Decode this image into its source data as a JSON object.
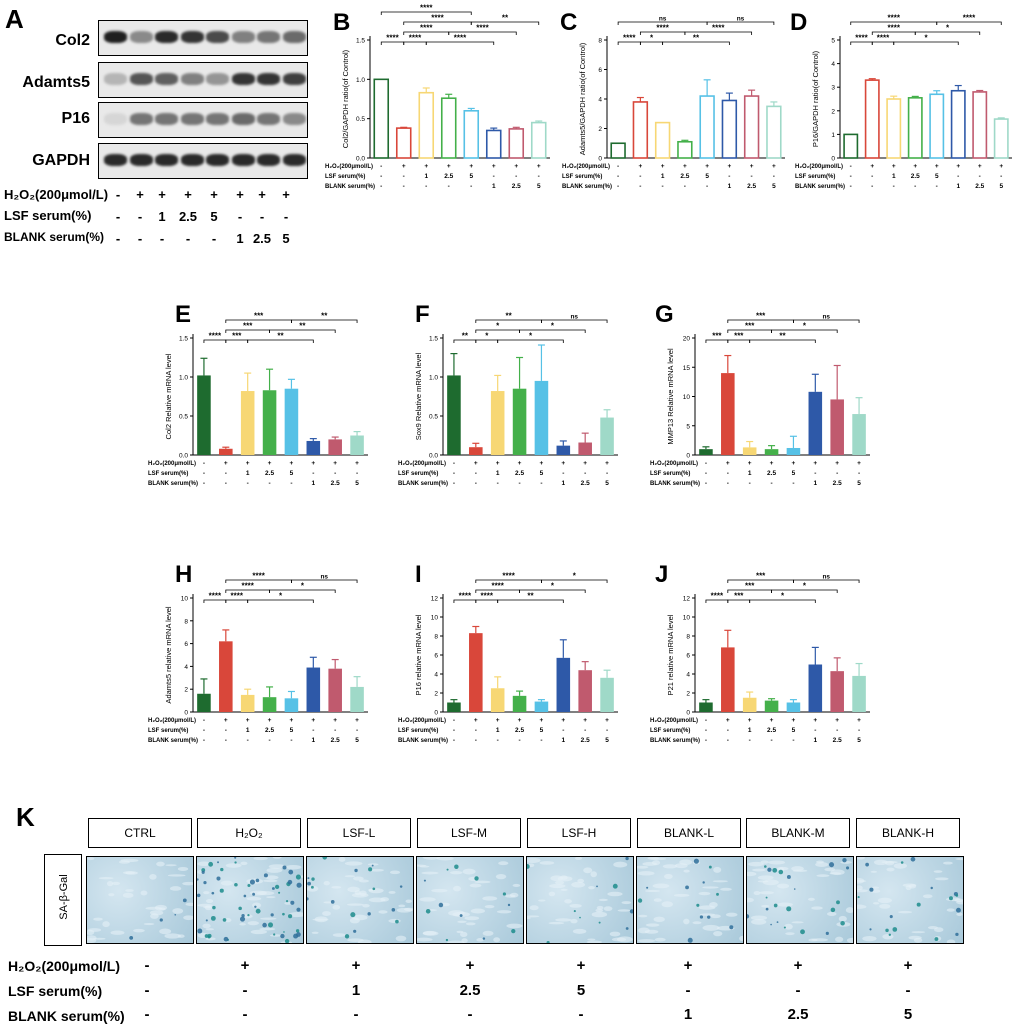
{
  "panelA": {
    "letter": "A",
    "blots": [
      "Col2",
      "Adamts5",
      "P16",
      "GAPDH"
    ],
    "band_intensity": [
      [
        0.95,
        0.45,
        0.9,
        0.85,
        0.75,
        0.5,
        0.55,
        0.6
      ],
      [
        0.25,
        0.7,
        0.65,
        0.5,
        0.4,
        0.85,
        0.85,
        0.8
      ],
      [
        0.1,
        0.55,
        0.55,
        0.55,
        0.55,
        0.6,
        0.55,
        0.45
      ],
      [
        0.9,
        0.9,
        0.9,
        0.9,
        0.9,
        0.9,
        0.9,
        0.9
      ]
    ],
    "rows": [
      {
        "label": "H₂O₂(200μmol/L)",
        "symbols": [
          "-",
          "+",
          "+",
          "+",
          "+",
          "+",
          "+",
          "+"
        ]
      },
      {
        "label": "LSF serum(%)",
        "symbols": [
          "-",
          "-",
          "1",
          "2.5",
          "5",
          "-",
          "-",
          "-"
        ]
      },
      {
        "label": "BLANK serum(%)",
        "symbols": [
          "-",
          "-",
          "-",
          "-",
          "-",
          "1",
          "2.5",
          "5"
        ]
      }
    ]
  },
  "conditions": {
    "h2o2": "H₂O₂(200μmol/L)",
    "lsf": "LSF serum(%)",
    "blank": "BLANK serum(%)",
    "h2o2_symbols": [
      "-",
      "+",
      "+",
      "+",
      "+",
      "+",
      "+",
      "+"
    ],
    "lsf_symbols": [
      "-",
      "-",
      "1",
      "2.5",
      "5",
      "-",
      "-",
      "-"
    ],
    "blank_symbols": [
      "-",
      "-",
      "-",
      "-",
      "-",
      "1",
      "2.5",
      "5"
    ]
  },
  "colors": [
    "#1e6b2f",
    "#d9473a",
    "#f7d774",
    "#44b04a",
    "#56c1e6",
    "#2e59a8",
    "#c05a6e",
    "#9fd9c8"
  ],
  "chart_data": [
    {
      "id": "B",
      "type": "bar",
      "style": "hollow",
      "ylabel": "Col2/GAPDH ratio(of Control)",
      "ylim": [
        0,
        1.5
      ],
      "yticks": [
        0.0,
        0.5,
        1.0,
        1.5
      ],
      "categories": [
        "Control",
        "H2O2",
        "LSF 1%",
        "LSF 2.5%",
        "LSF 5%",
        "BLANK 1%",
        "BLANK 2.5%",
        "BLANK 5%"
      ],
      "values": [
        1.0,
        0.38,
        0.83,
        0.76,
        0.6,
        0.35,
        0.37,
        0.45
      ],
      "errors": [
        0,
        0.01,
        0.06,
        0.05,
        0.03,
        0.03,
        0.02,
        0.02
      ],
      "sig": [
        [
          0,
          1,
          "****"
        ],
        [
          1,
          2,
          "****"
        ],
        [
          1,
          3,
          "****"
        ],
        [
          1,
          4,
          "****"
        ],
        [
          2,
          5,
          "****"
        ],
        [
          3,
          6,
          "****"
        ],
        [
          4,
          7,
          "**"
        ],
        [
          0,
          4,
          "****"
        ]
      ]
    },
    {
      "id": "C",
      "type": "bar",
      "style": "hollow",
      "ylabel": "Adamts5/GAPDH ratio(of Control)",
      "ylim": [
        0,
        8
      ],
      "yticks": [
        0,
        2,
        4,
        6,
        8
      ],
      "categories": [
        "Control",
        "H2O2",
        "LSF 1%",
        "LSF 2.5%",
        "LSF 5%",
        "BLANK 1%",
        "BLANK 2.5%",
        "BLANK 5%"
      ],
      "values": [
        1.0,
        3.8,
        2.4,
        1.1,
        4.2,
        3.9,
        4.2,
        3.5
      ],
      "errors": [
        0,
        0.3,
        0,
        0.1,
        1.1,
        0.5,
        0.4,
        0.3
      ],
      "sig": [
        [
          0,
          1,
          "****"
        ],
        [
          1,
          2,
          "*"
        ],
        [
          1,
          3,
          "****"
        ],
        [
          2,
          5,
          "**"
        ],
        [
          3,
          6,
          "****"
        ],
        [
          4,
          7,
          "ns"
        ],
        [
          0,
          4,
          "ns"
        ]
      ]
    },
    {
      "id": "D",
      "type": "bar",
      "style": "hollow",
      "ylabel": "P16/GAPDH ratio(of Control)",
      "ylim": [
        0,
        5
      ],
      "yticks": [
        0,
        1,
        2,
        3,
        4,
        5
      ],
      "categories": [
        "Control",
        "H2O2",
        "LSF 1%",
        "LSF 2.5%",
        "LSF 5%",
        "BLANK 1%",
        "BLANK 2.5%",
        "BLANK 5%"
      ],
      "values": [
        1.0,
        3.3,
        2.5,
        2.55,
        2.7,
        2.85,
        2.8,
        1.65
      ],
      "errors": [
        0,
        0.06,
        0.12,
        0.06,
        0.15,
        0.22,
        0.06,
        0.05
      ],
      "sig": [
        [
          0,
          1,
          "****"
        ],
        [
          1,
          2,
          "****"
        ],
        [
          1,
          3,
          "****"
        ],
        [
          2,
          5,
          "*"
        ],
        [
          3,
          6,
          "*"
        ],
        [
          4,
          7,
          "****"
        ],
        [
          0,
          4,
          "****"
        ]
      ]
    },
    {
      "id": "E",
      "type": "bar",
      "style": "filled",
      "ylabel": "Col2 Relative mRNA level",
      "ylim": [
        0,
        1.5
      ],
      "yticks": [
        0.0,
        0.5,
        1.0,
        1.5
      ],
      "categories": [
        "Control",
        "H2O2",
        "LSF 1%",
        "LSF 2.5%",
        "LSF 5%",
        "BLANK 1%",
        "BLANK 2.5%",
        "BLANK 5%"
      ],
      "values": [
        1.02,
        0.08,
        0.82,
        0.83,
        0.85,
        0.18,
        0.2,
        0.25
      ],
      "errors": [
        0.22,
        0.02,
        0.23,
        0.27,
        0.12,
        0.03,
        0.03,
        0.05
      ],
      "sig": [
        [
          0,
          1,
          "****"
        ],
        [
          1,
          2,
          "***"
        ],
        [
          1,
          3,
          "***"
        ],
        [
          1,
          4,
          "***"
        ],
        [
          2,
          5,
          "**"
        ],
        [
          3,
          6,
          "**"
        ],
        [
          4,
          7,
          "**"
        ]
      ]
    },
    {
      "id": "F",
      "type": "bar",
      "style": "filled",
      "ylabel": "Sox9 Relative mRNA level",
      "ylim": [
        0,
        1.5
      ],
      "yticks": [
        0.0,
        0.5,
        1.0,
        1.5
      ],
      "categories": [
        "Control",
        "H2O2",
        "LSF 1%",
        "LSF 2.5%",
        "LSF 5%",
        "BLANK 1%",
        "BLANK 2.5%",
        "BLANK 5%"
      ],
      "values": [
        1.02,
        0.1,
        0.82,
        0.85,
        0.95,
        0.12,
        0.16,
        0.48
      ],
      "errors": [
        0.28,
        0.05,
        0.2,
        0.4,
        0.46,
        0.06,
        0.12,
        0.1
      ],
      "sig": [
        [
          0,
          1,
          "**"
        ],
        [
          1,
          2,
          "*"
        ],
        [
          1,
          3,
          "*"
        ],
        [
          1,
          4,
          "**"
        ],
        [
          2,
          5,
          "*"
        ],
        [
          3,
          6,
          "*"
        ],
        [
          4,
          7,
          "ns"
        ]
      ]
    },
    {
      "id": "G",
      "type": "bar",
      "style": "filled",
      "ylabel": "MMP13 Relative mRNA level",
      "ylim": [
        0,
        20
      ],
      "yticks": [
        0,
        5,
        10,
        15,
        20
      ],
      "categories": [
        "Control",
        "H2O2",
        "LSF 1%",
        "LSF 2.5%",
        "LSF 5%",
        "BLANK 1%",
        "BLANK 2.5%",
        "BLANK 5%"
      ],
      "values": [
        1.0,
        14.0,
        1.3,
        1.0,
        1.2,
        10.8,
        9.5,
        7.0
      ],
      "errors": [
        0.4,
        3.0,
        1.0,
        0.6,
        2.0,
        3.0,
        5.8,
        2.8
      ],
      "sig": [
        [
          0,
          1,
          "***"
        ],
        [
          1,
          2,
          "***"
        ],
        [
          1,
          3,
          "***"
        ],
        [
          1,
          4,
          "***"
        ],
        [
          2,
          5,
          "**"
        ],
        [
          3,
          6,
          "*"
        ],
        [
          4,
          7,
          "ns"
        ]
      ]
    },
    {
      "id": "H",
      "type": "bar",
      "style": "filled",
      "ylabel": "Adamts5 relative mRNA level",
      "ylim": [
        0,
        10
      ],
      "yticks": [
        0,
        2,
        4,
        6,
        8,
        10
      ],
      "categories": [
        "Control",
        "H2O2",
        "LSF 1%",
        "LSF 2.5%",
        "LSF 5%",
        "BLANK 1%",
        "BLANK 2.5%",
        "BLANK 5%"
      ],
      "values": [
        1.6,
        6.2,
        1.5,
        1.3,
        1.2,
        3.9,
        3.8,
        2.2
      ],
      "errors": [
        1.3,
        1.0,
        0.5,
        0.9,
        0.6,
        0.9,
        0.8,
        0.9
      ],
      "sig": [
        [
          0,
          1,
          "****"
        ],
        [
          1,
          2,
          "****"
        ],
        [
          1,
          3,
          "****"
        ],
        [
          1,
          4,
          "****"
        ],
        [
          2,
          5,
          "*"
        ],
        [
          3,
          6,
          "*"
        ],
        [
          4,
          7,
          "ns"
        ]
      ]
    },
    {
      "id": "I",
      "type": "bar",
      "style": "filled",
      "ylabel": "P16 relative mRNA level",
      "ylim": [
        0,
        12
      ],
      "yticks": [
        0,
        2,
        4,
        6,
        8,
        10,
        12
      ],
      "categories": [
        "Control",
        "H2O2",
        "LSF 1%",
        "LSF 2.5%",
        "LSF 5%",
        "BLANK 1%",
        "BLANK 2.5%",
        "BLANK 5%"
      ],
      "values": [
        1.0,
        8.3,
        2.5,
        1.7,
        1.1,
        5.7,
        4.4,
        3.6
      ],
      "errors": [
        0.3,
        0.7,
        1.2,
        0.5,
        0.2,
        1.9,
        0.9,
        0.8
      ],
      "sig": [
        [
          0,
          1,
          "****"
        ],
        [
          1,
          2,
          "****"
        ],
        [
          1,
          3,
          "****"
        ],
        [
          1,
          4,
          "****"
        ],
        [
          2,
          5,
          "**"
        ],
        [
          3,
          6,
          "*"
        ],
        [
          4,
          7,
          "*"
        ]
      ]
    },
    {
      "id": "J",
      "type": "bar",
      "style": "filled",
      "ylabel": "P21 relative mRNA level",
      "ylim": [
        0,
        12
      ],
      "yticks": [
        0,
        2,
        4,
        6,
        8,
        10,
        12
      ],
      "categories": [
        "Control",
        "H2O2",
        "LSF 1%",
        "LSF 2.5%",
        "LSF 5%",
        "BLANK 1%",
        "BLANK 2.5%",
        "BLANK 5%"
      ],
      "values": [
        1.0,
        6.8,
        1.5,
        1.2,
        1.0,
        5.0,
        4.3,
        3.8
      ],
      "errors": [
        0.3,
        1.8,
        0.6,
        0.2,
        0.3,
        1.8,
        1.4,
        1.3
      ],
      "sig": [
        [
          0,
          1,
          "****"
        ],
        [
          1,
          2,
          "***"
        ],
        [
          1,
          3,
          "***"
        ],
        [
          1,
          4,
          "***"
        ],
        [
          2,
          5,
          "*"
        ],
        [
          3,
          6,
          "*"
        ],
        [
          4,
          7,
          "ns"
        ]
      ]
    }
  ],
  "panelK": {
    "letter": "K",
    "groups": [
      "CTRL",
      "H₂O₂",
      "LSF-L",
      "LSF-M",
      "LSF-H",
      "BLANK-L",
      "BLANK-M",
      "BLANK-H"
    ],
    "stain_label": "SA-β-Gal",
    "stain_density": [
      4,
      60,
      18,
      12,
      10,
      12,
      22,
      18
    ]
  }
}
